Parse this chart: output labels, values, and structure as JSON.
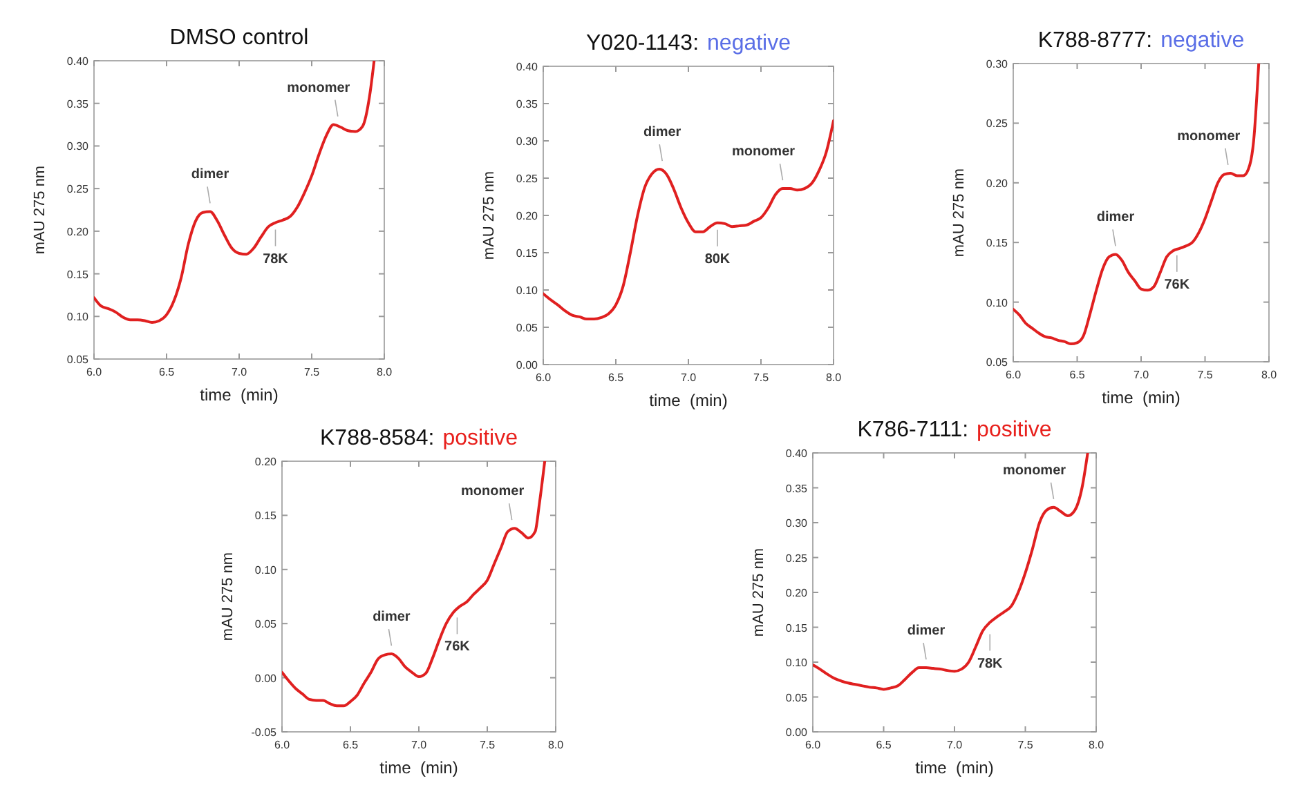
{
  "chart_data": [
    {
      "type": "line",
      "title": "DMSO control",
      "xlabel": "time  (min)",
      "ylabel": "mAU 275 nm",
      "x": [
        6.0,
        6.05,
        6.1,
        6.15,
        6.2,
        6.25,
        6.3,
        6.35,
        6.4,
        6.45,
        6.5,
        6.55,
        6.6,
        6.65,
        6.7,
        6.75,
        6.8,
        6.85,
        6.9,
        6.95,
        7.0,
        7.05,
        7.1,
        7.15,
        7.2,
        7.25,
        7.3,
        7.35,
        7.4,
        7.45,
        7.5,
        7.55,
        7.6,
        7.65,
        7.7,
        7.75,
        7.8,
        7.85,
        7.9,
        7.93
      ],
      "series": [
        {
          "color": "#e02020",
          "values": [
            0.122,
            0.112,
            0.109,
            0.105,
            0.099,
            0.096,
            0.096,
            0.095,
            0.093,
            0.095,
            0.102,
            0.118,
            0.145,
            0.185,
            0.212,
            0.222,
            0.223,
            0.212,
            0.195,
            0.18,
            0.174,
            0.173,
            0.18,
            0.193,
            0.205,
            0.21,
            0.213,
            0.217,
            0.228,
            0.245,
            0.265,
            0.29,
            0.312,
            0.325,
            0.322,
            0.318,
            0.317,
            0.323,
            0.36,
            0.4
          ]
        }
      ],
      "xlim": [
        6,
        8
      ],
      "ylim": [
        0.05,
        0.4
      ],
      "xticks": [
        {
          "value": 6,
          "label": "6.0"
        },
        {
          "value": 6.5,
          "label": "6.5"
        },
        {
          "value": 7,
          "label": "7.0"
        },
        {
          "value": 7.5,
          "label": "7.5"
        },
        {
          "value": 8,
          "label": "8.0"
        }
      ],
      "yticks": [
        {
          "value": 0.05,
          "label": "0.05"
        },
        {
          "value": 0.1,
          "label": "0.10"
        },
        {
          "value": 0.15,
          "label": "0.15"
        },
        {
          "value": 0.2,
          "label": "0.20"
        },
        {
          "value": 0.25,
          "label": "0.25"
        },
        {
          "value": 0.3,
          "label": "0.30"
        },
        {
          "value": 0.35,
          "label": "0.35"
        },
        {
          "value": 0.4,
          "label": "0.40"
        }
      ],
      "annotations": [
        {
          "text": "dimer",
          "x": 6.8,
          "y": 0.223
        },
        {
          "text": "78K",
          "x": 7.25,
          "y": 0.21
        },
        {
          "text": "monomer",
          "x": 7.68,
          "y": 0.325
        }
      ]
    },
    {
      "type": "line",
      "title": "Y020-1143:",
      "subtitle": "negative",
      "xlabel": "time  (min)",
      "ylabel": "mAU 275 nm",
      "x": [
        6.0,
        6.05,
        6.1,
        6.15,
        6.2,
        6.25,
        6.3,
        6.35,
        6.4,
        6.45,
        6.5,
        6.55,
        6.6,
        6.65,
        6.7,
        6.75,
        6.8,
        6.85,
        6.9,
        6.95,
        7.0,
        7.05,
        7.1,
        7.15,
        7.2,
        7.25,
        7.3,
        7.35,
        7.4,
        7.45,
        7.5,
        7.55,
        7.6,
        7.65,
        7.7,
        7.75,
        7.8,
        7.85,
        7.9,
        7.95,
        8.0
      ],
      "series": [
        {
          "color": "#e02020",
          "values": [
            0.095,
            0.087,
            0.08,
            0.072,
            0.066,
            0.064,
            0.061,
            0.061,
            0.063,
            0.068,
            0.08,
            0.105,
            0.15,
            0.2,
            0.238,
            0.256,
            0.262,
            0.255,
            0.235,
            0.21,
            0.19,
            0.178,
            0.178,
            0.185,
            0.19,
            0.189,
            0.185,
            0.186,
            0.187,
            0.192,
            0.197,
            0.21,
            0.228,
            0.236,
            0.236,
            0.234,
            0.236,
            0.243,
            0.26,
            0.285,
            0.327
          ]
        }
      ],
      "xlim": [
        6,
        8
      ],
      "ylim": [
        0,
        0.4
      ],
      "xticks": [
        {
          "value": 6,
          "label": "6.0"
        },
        {
          "value": 6.5,
          "label": "6.5"
        },
        {
          "value": 7,
          "label": "7.0"
        },
        {
          "value": 7.5,
          "label": "7.5"
        },
        {
          "value": 8,
          "label": "8.0"
        }
      ],
      "yticks": [
        {
          "value": 0,
          "label": "0.00"
        },
        {
          "value": 0.05,
          "label": "0.05"
        },
        {
          "value": 0.1,
          "label": "0.10"
        },
        {
          "value": 0.15,
          "label": "0.15"
        },
        {
          "value": 0.2,
          "label": "0.20"
        },
        {
          "value": 0.25,
          "label": "0.25"
        },
        {
          "value": 0.3,
          "label": "0.30"
        },
        {
          "value": 0.35,
          "label": "0.35"
        },
        {
          "value": 0.4,
          "label": "0.40"
        }
      ],
      "annotations": [
        {
          "text": "dimer",
          "x": 6.82,
          "y": 0.262
        },
        {
          "text": "80K",
          "x": 7.2,
          "y": 0.19
        },
        {
          "text": "monomer",
          "x": 7.65,
          "y": 0.236
        }
      ]
    },
    {
      "type": "line",
      "title": "K788-8777:",
      "subtitle": "negative",
      "xlabel": "time  (min)",
      "ylabel": "mAU 275 nm",
      "x": [
        6.0,
        6.05,
        6.1,
        6.15,
        6.2,
        6.25,
        6.3,
        6.35,
        6.4,
        6.45,
        6.5,
        6.55,
        6.6,
        6.65,
        6.7,
        6.75,
        6.8,
        6.85,
        6.9,
        6.95,
        7.0,
        7.05,
        7.1,
        7.15,
        7.2,
        7.25,
        7.3,
        7.35,
        7.4,
        7.45,
        7.5,
        7.55,
        7.6,
        7.65,
        7.7,
        7.75,
        7.8,
        7.85,
        7.88,
        7.92
      ],
      "series": [
        {
          "color": "#e02020",
          "values": [
            0.094,
            0.089,
            0.082,
            0.078,
            0.074,
            0.071,
            0.07,
            0.068,
            0.067,
            0.065,
            0.066,
            0.072,
            0.09,
            0.11,
            0.128,
            0.138,
            0.14,
            0.135,
            0.125,
            0.118,
            0.111,
            0.11,
            0.113,
            0.125,
            0.138,
            0.143,
            0.145,
            0.147,
            0.15,
            0.158,
            0.17,
            0.185,
            0.2,
            0.207,
            0.208,
            0.206,
            0.206,
            0.215,
            0.235,
            0.3
          ]
        }
      ],
      "xlim": [
        6,
        8
      ],
      "ylim": [
        0.05,
        0.3
      ],
      "xticks": [
        {
          "value": 6,
          "label": "6.0"
        },
        {
          "value": 6.5,
          "label": "6.5"
        },
        {
          "value": 7,
          "label": "7.0"
        },
        {
          "value": 7.5,
          "label": "7.5"
        },
        {
          "value": 8,
          "label": "8.0"
        }
      ],
      "yticks": [
        {
          "value": 0.05,
          "label": "0.05"
        },
        {
          "value": 0.1,
          "label": "0.10"
        },
        {
          "value": 0.15,
          "label": "0.15"
        },
        {
          "value": 0.2,
          "label": "0.20"
        },
        {
          "value": 0.25,
          "label": "0.25"
        },
        {
          "value": 0.3,
          "label": "0.30"
        }
      ],
      "annotations": [
        {
          "text": "dimer",
          "x": 6.8,
          "y": 0.14
        },
        {
          "text": "76K",
          "x": 7.28,
          "y": 0.145
        },
        {
          "text": "monomer",
          "x": 7.68,
          "y": 0.208
        }
      ]
    },
    {
      "type": "line",
      "title": "K788-8584:",
      "subtitle": "positive",
      "xlabel": "time  (min)",
      "ylabel": "mAU 275 nm",
      "x": [
        6.0,
        6.05,
        6.1,
        6.15,
        6.2,
        6.25,
        6.3,
        6.35,
        6.4,
        6.45,
        6.5,
        6.55,
        6.6,
        6.65,
        6.7,
        6.75,
        6.8,
        6.85,
        6.9,
        6.95,
        7.0,
        7.05,
        7.1,
        7.15,
        7.2,
        7.25,
        7.3,
        7.35,
        7.4,
        7.45,
        7.5,
        7.55,
        7.6,
        7.65,
        7.7,
        7.75,
        7.8,
        7.85,
        7.88,
        7.92
      ],
      "series": [
        {
          "color": "#e02020",
          "values": [
            0.005,
            -0.003,
            -0.01,
            -0.015,
            -0.02,
            -0.021,
            -0.021,
            -0.024,
            -0.026,
            -0.026,
            -0.022,
            -0.016,
            -0.005,
            0.005,
            0.017,
            0.021,
            0.022,
            0.018,
            0.01,
            0.005,
            0.001,
            0.004,
            0.018,
            0.035,
            0.05,
            0.06,
            0.066,
            0.07,
            0.077,
            0.083,
            0.09,
            0.105,
            0.12,
            0.135,
            0.138,
            0.134,
            0.129,
            0.135,
            0.16,
            0.2
          ]
        }
      ],
      "xlim": [
        6,
        8
      ],
      "ylim": [
        -0.05,
        0.2
      ],
      "xticks": [
        {
          "value": 6,
          "label": "6.0"
        },
        {
          "value": 6.5,
          "label": "6.5"
        },
        {
          "value": 7,
          "label": "7.0"
        },
        {
          "value": 7.5,
          "label": "7.5"
        },
        {
          "value": 8,
          "label": "8.0"
        }
      ],
      "yticks": [
        {
          "value": -0.05,
          "label": "-0.05"
        },
        {
          "value": 0,
          "label": "0.00"
        },
        {
          "value": 0.05,
          "label": "0.05"
        },
        {
          "value": 0.1,
          "label": "0.10"
        },
        {
          "value": 0.15,
          "label": "0.15"
        },
        {
          "value": 0.2,
          "label": "0.20"
        }
      ],
      "annotations": [
        {
          "text": "dimer",
          "x": 6.8,
          "y": 0.022
        },
        {
          "text": "76K",
          "x": 7.28,
          "y": 0.062
        },
        {
          "text": "monomer",
          "x": 7.68,
          "y": 0.138
        }
      ]
    },
    {
      "type": "line",
      "title": "K786-7111:",
      "subtitle": "positive",
      "xlabel": "time  (min)",
      "ylabel": "mAU 275 nm",
      "x": [
        6.0,
        6.05,
        6.1,
        6.15,
        6.2,
        6.25,
        6.3,
        6.35,
        6.4,
        6.45,
        6.5,
        6.55,
        6.6,
        6.65,
        6.7,
        6.75,
        6.8,
        6.85,
        6.9,
        6.95,
        7.0,
        7.05,
        7.1,
        7.15,
        7.2,
        7.25,
        7.3,
        7.35,
        7.4,
        7.45,
        7.5,
        7.55,
        7.6,
        7.65,
        7.7,
        7.75,
        7.8,
        7.85,
        7.9,
        7.94
      ],
      "series": [
        {
          "color": "#e02020",
          "values": [
            0.096,
            0.09,
            0.083,
            0.077,
            0.073,
            0.07,
            0.068,
            0.066,
            0.064,
            0.063,
            0.061,
            0.063,
            0.066,
            0.075,
            0.085,
            0.092,
            0.092,
            0.091,
            0.09,
            0.088,
            0.087,
            0.09,
            0.1,
            0.122,
            0.145,
            0.157,
            0.165,
            0.172,
            0.18,
            0.2,
            0.228,
            0.262,
            0.3,
            0.318,
            0.322,
            0.316,
            0.31,
            0.318,
            0.35,
            0.4
          ]
        }
      ],
      "xlim": [
        6,
        8
      ],
      "ylim": [
        0,
        0.4
      ],
      "xticks": [
        {
          "value": 6,
          "label": "6.0"
        },
        {
          "value": 6.5,
          "label": "6.5"
        },
        {
          "value": 7,
          "label": "7.0"
        },
        {
          "value": 7.5,
          "label": "7.5"
        },
        {
          "value": 8,
          "label": "8.0"
        }
      ],
      "yticks": [
        {
          "value": 0,
          "label": "0.00"
        },
        {
          "value": 0.05,
          "label": "0.05"
        },
        {
          "value": 0.1,
          "label": "0.10"
        },
        {
          "value": 0.15,
          "label": "0.15"
        },
        {
          "value": 0.2,
          "label": "0.20"
        },
        {
          "value": 0.25,
          "label": "0.25"
        },
        {
          "value": 0.3,
          "label": "0.30"
        },
        {
          "value": 0.35,
          "label": "0.35"
        },
        {
          "value": 0.4,
          "label": "0.40"
        }
      ],
      "annotations": [
        {
          "text": "dimer",
          "x": 6.8,
          "y": 0.092
        },
        {
          "text": "78K",
          "x": 7.25,
          "y": 0.15
        },
        {
          "text": "monomer",
          "x": 7.7,
          "y": 0.322
        }
      ]
    }
  ]
}
